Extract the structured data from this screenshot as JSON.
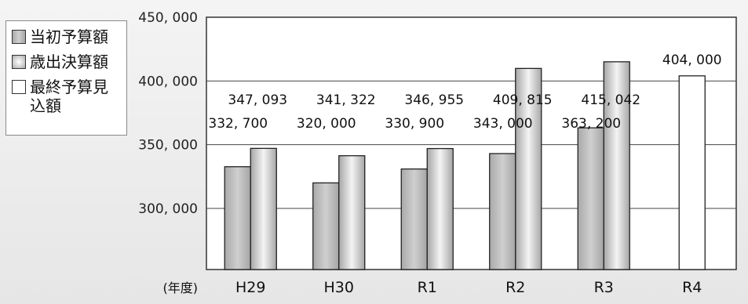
{
  "chart_data": {
    "type": "bar",
    "categories": [
      "H29",
      "H30",
      "R1",
      "R2",
      "R3",
      "R4"
    ],
    "x_axis_unit": "(年度)",
    "series": [
      {
        "name": "当初予算額",
        "values": [
          332700,
          320000,
          330900,
          343000,
          363200,
          null
        ],
        "labels": [
          "332, 700",
          "320, 000",
          "330, 900",
          "343, 000",
          "363, 200",
          null
        ],
        "color": "#c2c2c2"
      },
      {
        "name": "歳出決算額",
        "values": [
          347093,
          341322,
          346955,
          409815,
          415042,
          null
        ],
        "labels": [
          "347, 093",
          "341, 322",
          "346, 955",
          "409, 815",
          "415, 042",
          null
        ],
        "color": "#bdbdbd"
      },
      {
        "name": "最終予算見込額",
        "values": [
          null,
          null,
          null,
          null,
          null,
          404000
        ],
        "labels": [
          null,
          null,
          null,
          null,
          null,
          "404, 000"
        ],
        "color": "#ffffff"
      }
    ],
    "y_ticks": [
      300000,
      350000,
      400000,
      450000
    ],
    "y_tick_labels": [
      "300, 000",
      "350, 000",
      "400, 000",
      "450, 000"
    ],
    "ylim": [
      252000,
      450000
    ],
    "grid": true,
    "legend_position": "left"
  }
}
